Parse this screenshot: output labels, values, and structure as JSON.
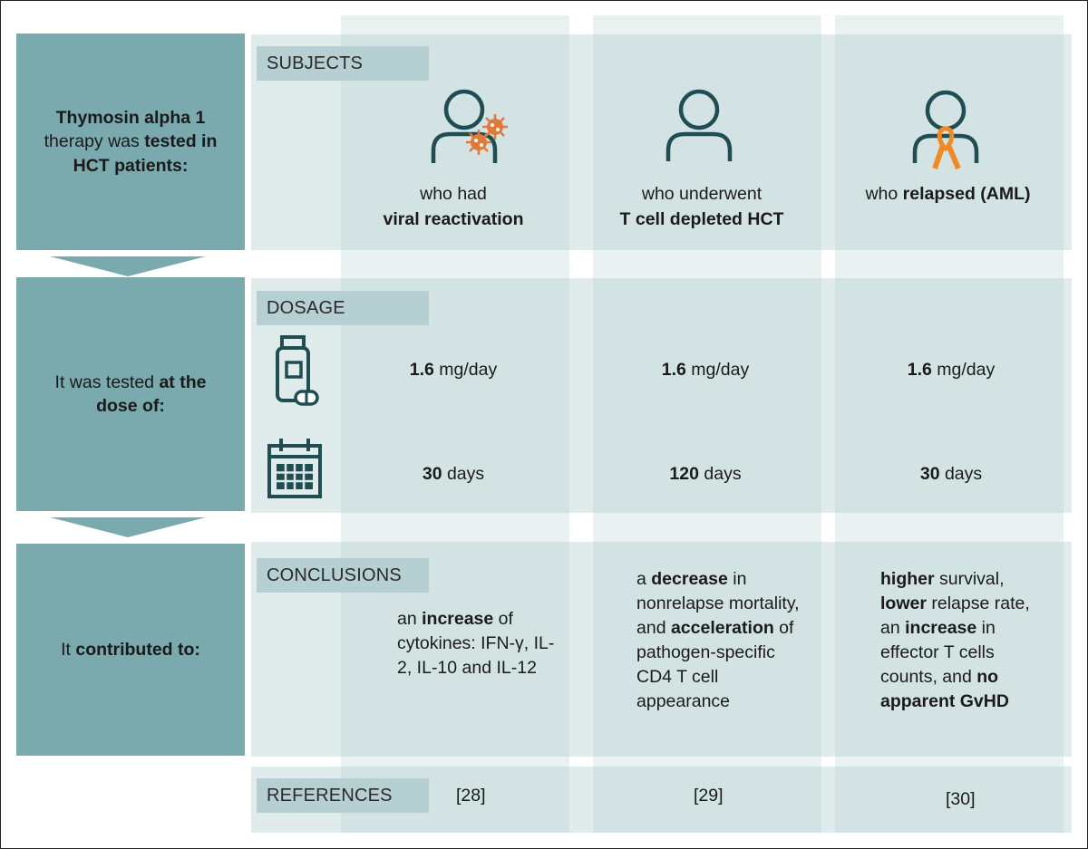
{
  "rows": {
    "subjects": {
      "left_parts": [
        {
          "t": "Thymosin alpha 1",
          "b": true
        },
        {
          "t": " therapy was ",
          "b": false
        },
        {
          "t": "tested in HCT patients:",
          "b": true
        }
      ],
      "tag": "SUBJECTS"
    },
    "dosage": {
      "left_parts": [
        {
          "t": "It was tested ",
          "b": false
        },
        {
          "t": "at the dose of:",
          "b": true
        }
      ],
      "tag": "DOSAGE"
    },
    "conclusions": {
      "left_parts": [
        {
          "t": "It ",
          "b": false
        },
        {
          "t": "contributed to:",
          "b": true
        }
      ],
      "tag": "CONCLUSIONS"
    },
    "references": {
      "tag": "REFERENCES"
    }
  },
  "columns": [
    {
      "subject_line1": "who had",
      "subject_line2": "viral reactivation",
      "dose_bold": "1.6",
      "dose_unit": " mg/day",
      "duration_bold": "30",
      "duration_unit": " days",
      "conclusion_parts": [
        {
          "t": "an ",
          "b": false
        },
        {
          "t": "increase",
          "b": true
        },
        {
          "t": " of cytokines: IFN-γ, IL-2, IL-10 and IL-12",
          "b": false
        }
      ],
      "reference": "[28]"
    },
    {
      "subject_line1": "who underwent",
      "subject_line2": "T cell depleted HCT",
      "dose_bold": "1.6",
      "dose_unit": " mg/day",
      "duration_bold": "120",
      "duration_unit": " days",
      "conclusion_parts": [
        {
          "t": "a ",
          "b": false
        },
        {
          "t": "decrease",
          "b": true
        },
        {
          "t": " in nonrelapse mortality, and ",
          "b": false
        },
        {
          "t": "acceleration",
          "b": true
        },
        {
          "t": " of pathogen-specific CD4 T cell appearance",
          "b": false
        }
      ],
      "reference": "[29]"
    },
    {
      "subject_parts": [
        {
          "t": "who ",
          "b": false
        },
        {
          "t": "relapsed (AML)",
          "b": true
        }
      ],
      "dose_bold": "1.6",
      "dose_unit": " mg/day",
      "duration_bold": "30",
      "duration_unit": " days",
      "conclusion_parts": [
        {
          "t": "higher",
          "b": true
        },
        {
          "t": " survival, ",
          "b": false
        },
        {
          "t": "lower",
          "b": true
        },
        {
          "t": " relapse rate, an ",
          "b": false
        },
        {
          "t": "increase",
          "b": true
        },
        {
          "t": " in effector T cells counts, and ",
          "b": false
        },
        {
          "t": "no apparent GvHD",
          "b": true
        }
      ],
      "reference": "[30]"
    }
  ],
  "icons": {
    "subject_col1": "person-with-virus-icon",
    "subject_col2": "person-icon",
    "subject_col3": "person-with-ribbon-icon",
    "dose": "medicine-bottle-pill-icon",
    "duration": "calendar-icon"
  },
  "colors": {
    "left_box": "#7aa9ae",
    "tag": "#b5cfd2",
    "icon_stroke": "#1e4d52",
    "virus": "#e07a3a",
    "ribbon": "#f08a24"
  }
}
